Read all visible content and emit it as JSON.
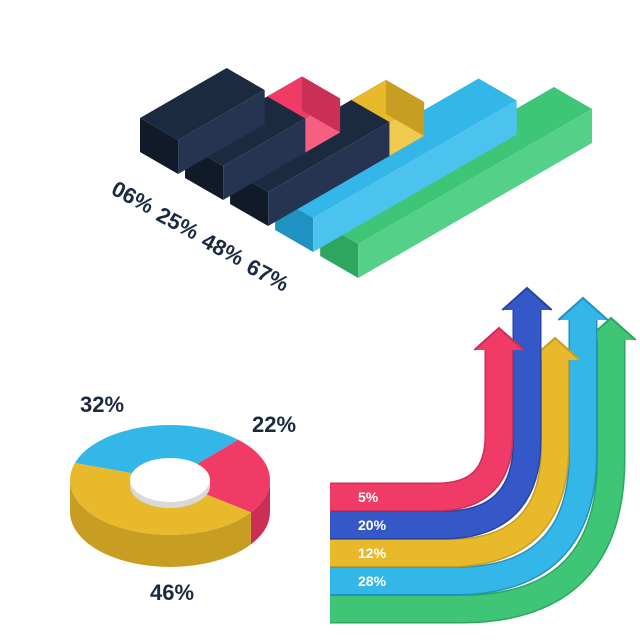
{
  "palette": {
    "bg": "#ffffff",
    "text": "#1b2a3f",
    "white": "#ffffff"
  },
  "bars": {
    "type": "isometric-bar",
    "labels_fontsize": 22,
    "labels_weight": "bold",
    "label_color": "#1b2a3f",
    "items": [
      {
        "label": "06%",
        "top": "#1b2a3f",
        "left": "#101a29",
        "right": "#253450",
        "len": 100
      },
      {
        "label": "25%",
        "top": "#1b2a3f",
        "left": "#101a29",
        "right": "#253450",
        "len": 135,
        "cap_top": "#ef3b66",
        "cap_left": "#cc2f55",
        "cap_right": "#f45f82"
      },
      {
        "label": "48%",
        "top": "#1b2a3f",
        "left": "#101a29",
        "right": "#253450",
        "len": 180,
        "cap_top": "#e8b92b",
        "cap_left": "#c79d22",
        "cap_right": "#f0c94f"
      },
      {
        "label": "67%",
        "top": "#33b6e8",
        "left": "#1f92c2",
        "right": "#4cc2ee",
        "len": 235
      },
      {
        "label": "",
        "top": "#3ec676",
        "left": "#2ea65f",
        "right": "#55d088",
        "len": 270
      }
    ]
  },
  "donut": {
    "type": "pie",
    "label_fontsize": 22,
    "label_weight": "bold",
    "label_color": "#1b2a3f",
    "hole_color": "#ffffff",
    "slices": [
      {
        "label": "32%",
        "value": 32,
        "top": "#33b6e8",
        "side": "#1f92c2"
      },
      {
        "label": "22%",
        "value": 22,
        "top": "#ef3b66",
        "side": "#cc2f55"
      },
      {
        "label": "46%",
        "value": 46,
        "top": "#e8b92b",
        "side": "#c79d22"
      }
    ]
  },
  "arrows": {
    "type": "infographic",
    "label_fontsize": 14,
    "label_weight": "bold",
    "label_color": "#ffffff",
    "items": [
      {
        "label": "5%",
        "color": "#ef3b66",
        "edge": "#cc2f55"
      },
      {
        "label": "20%",
        "color": "#3558c9",
        "edge": "#2843a0"
      },
      {
        "label": "12%",
        "color": "#e8b92b",
        "edge": "#c79d22"
      },
      {
        "label": "28%",
        "color": "#33b6e8",
        "edge": "#1f92c2"
      }
    ],
    "extra": {
      "color": "#3ec676",
      "edge": "#2ea65f"
    }
  }
}
